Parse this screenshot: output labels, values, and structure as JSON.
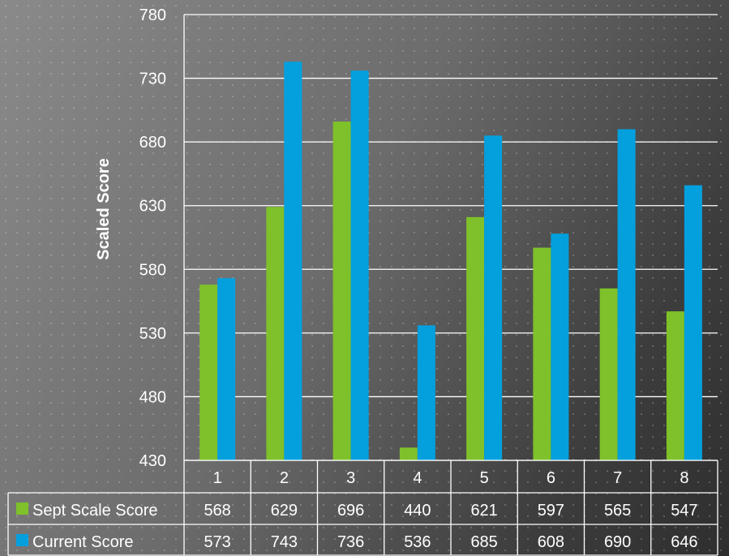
{
  "chart_data": {
    "type": "bar",
    "title": "",
    "xlabel": "",
    "ylabel": "Scaled Score",
    "ylim": [
      430,
      780
    ],
    "yticks": [
      430,
      480,
      530,
      580,
      630,
      680,
      730,
      780
    ],
    "grid": true,
    "legend": "data-table-left",
    "categories": [
      "1",
      "2",
      "3",
      "4",
      "5",
      "6",
      "7",
      "8"
    ],
    "series": [
      {
        "name": "Sept Scale Score",
        "color": "#7ec12a",
        "values": [
          568,
          629,
          696,
          440,
          621,
          597,
          565,
          547
        ]
      },
      {
        "name": "Current Score",
        "color": "#04a0de",
        "values": [
          573,
          743,
          736,
          536,
          685,
          608,
          690,
          646
        ]
      }
    ]
  }
}
